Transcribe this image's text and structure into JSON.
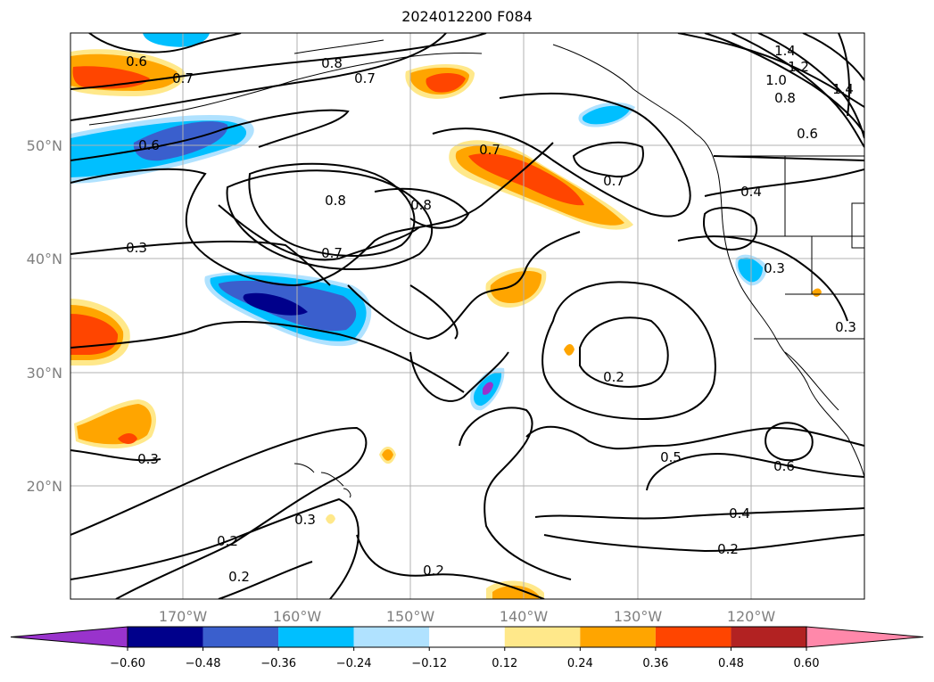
{
  "title": "2024012200 F084",
  "map": {
    "lat_labels": [
      "50°N",
      "40°N",
      "30°N",
      "20°N"
    ],
    "lon_labels": [
      "170°W",
      "160°W",
      "150°W",
      "140°W",
      "130°W",
      "120°W"
    ],
    "contour_labels": [
      "0.6",
      "0.7",
      "0.8",
      "0.7",
      "1.4",
      "1.2",
      "1.0",
      "0.8",
      "0.6",
      "1.4",
      "0.6",
      "0.7",
      "0.7",
      "0.8",
      "0.8",
      "0.4",
      "0.3",
      "0.7",
      "0.3",
      "0.3",
      "0.2",
      "0.3",
      "0.5",
      "0.6",
      "0.4",
      "0.2",
      "0.2",
      "0.3",
      "0.2",
      "0.2"
    ]
  },
  "colorbar": {
    "ticks": [
      "−0.60",
      "−0.48",
      "−0.36",
      "−0.24",
      "−0.12",
      "0.12",
      "0.24",
      "0.36",
      "0.48",
      "0.60"
    ],
    "colors": [
      "#9933cc",
      "#00008b",
      "#3a5fcd",
      "#00bfff",
      "#b0e2ff",
      "#ffffff",
      "#ffe88a",
      "#ffa500",
      "#ff4500",
      "#b22222",
      "#ff88aa"
    ]
  }
}
